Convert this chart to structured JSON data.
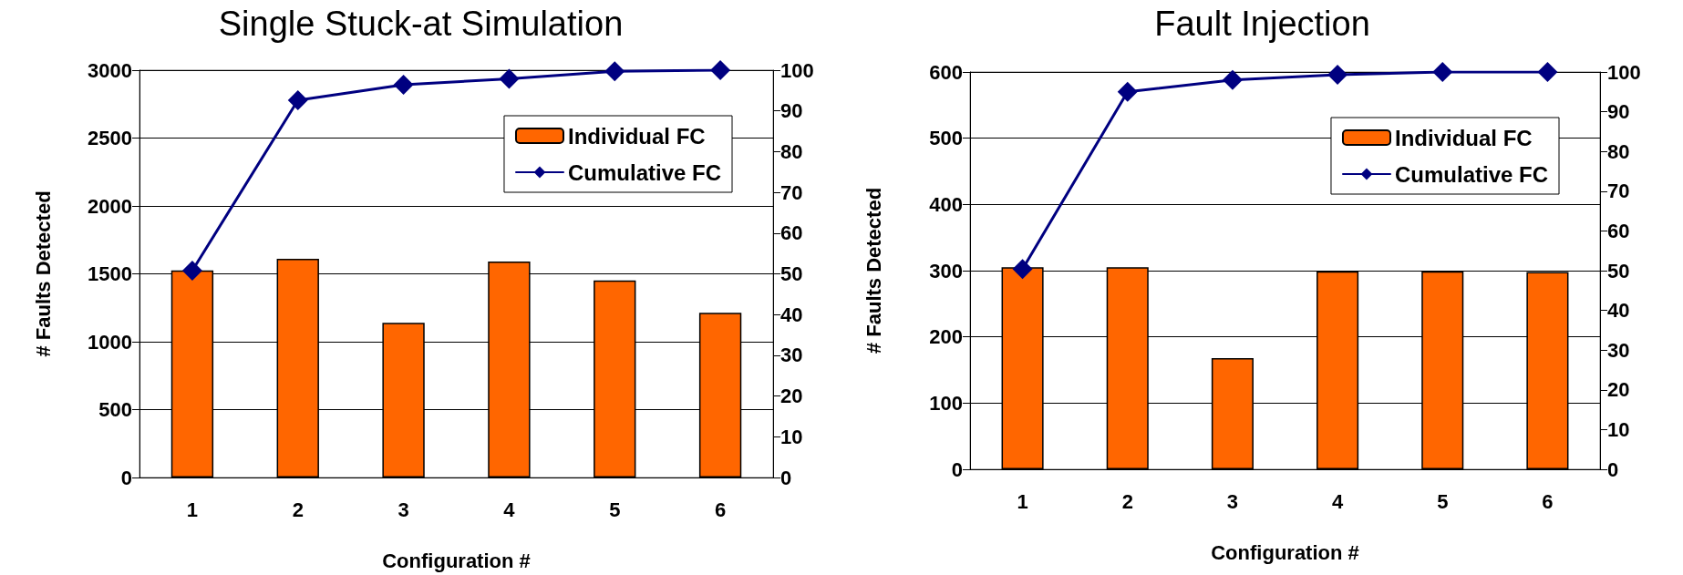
{
  "chart_data": [
    {
      "type": "bar",
      "title": "Single Stuck-at Simulation",
      "xlabel": "Configuration #",
      "ylabel": "# Faults Detected",
      "categories": [
        "1",
        "2",
        "3",
        "4",
        "5",
        "6"
      ],
      "series": [
        {
          "name": "Individual FC",
          "color": "#ff6600",
          "values": [
            1525,
            1611,
            1139,
            1591,
            1451,
            1213
          ]
        },
        {
          "name": "Cumulative FC",
          "type": "line",
          "axis": "y2",
          "color": "#000080",
          "values": [
            50.8,
            92.6,
            96.4,
            97.9,
            99.7,
            100
          ]
        }
      ],
      "ylim": [
        0,
        3000
      ],
      "yticks": [
        0,
        500,
        1000,
        1500,
        2000,
        2500,
        3000
      ],
      "y2lim": [
        0,
        100
      ],
      "y2ticks": [
        0,
        10,
        20,
        30,
        40,
        50,
        60,
        70,
        80,
        90,
        100
      ],
      "grid": "y",
      "legend": "top right",
      "marker": "diamond",
      "line_style": "solid"
    },
    {
      "type": "bar",
      "title": "Fault Injection",
      "xlabel": "Configuration #",
      "ylabel": "# Faults Detected",
      "categories": [
        "1",
        "2",
        "3",
        "4",
        "5",
        "6"
      ],
      "series": [
        {
          "name": "Individual FC",
          "color": "#ff6600",
          "values": [
            305,
            305,
            168,
            299,
            299,
            298
          ]
        },
        {
          "name": "Cumulative FC",
          "type": "line",
          "axis": "y2",
          "color": "#000080",
          "values": [
            50.4,
            95.0,
            98.0,
            99.3,
            100,
            100
          ]
        }
      ],
      "ylim": [
        0,
        600
      ],
      "yticks": [
        0,
        100,
        200,
        300,
        400,
        500,
        600
      ],
      "y2lim": [
        0,
        100
      ],
      "y2ticks": [
        0,
        10,
        20,
        30,
        40,
        50,
        60,
        70,
        80,
        90,
        100
      ],
      "grid": "y",
      "legend": "top right",
      "marker": "diamond",
      "line_style": "solid"
    }
  ]
}
